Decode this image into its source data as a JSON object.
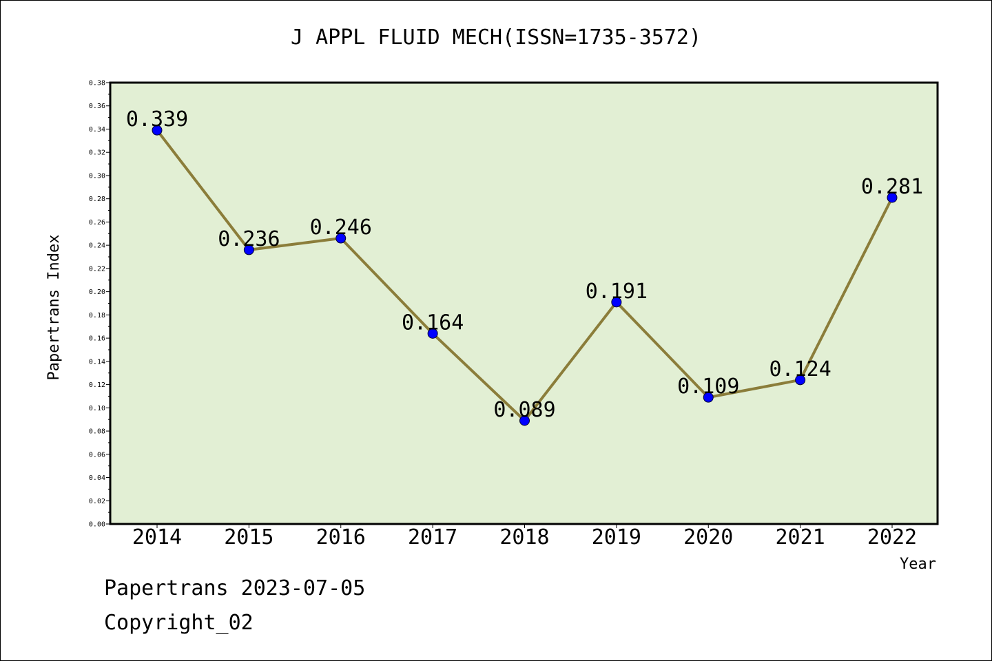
{
  "chart_data": {
    "type": "line",
    "title": "J APPL FLUID MECH(ISSN=1735-3572)",
    "xlabel": "Year",
    "ylabel": "Papertrans Index",
    "categories": [
      "2014",
      "2015",
      "2016",
      "2017",
      "2018",
      "2019",
      "2020",
      "2021",
      "2022"
    ],
    "series": [
      {
        "values": [
          0.339,
          0.236,
          0.246,
          0.164,
          0.089,
          0.191,
          0.109,
          0.124,
          0.281
        ],
        "labels": [
          "0.339",
          "0.236",
          "0.246",
          "0.164",
          "0.089",
          "0.191",
          "0.109",
          "0.124",
          "0.281"
        ]
      }
    ],
    "ylim": [
      0,
      0.38
    ],
    "yticks": [
      "0.00",
      "0.02",
      "0.04",
      "0.06",
      "0.08",
      "0.10",
      "0.12",
      "0.14",
      "0.16",
      "0.18",
      "0.20",
      "0.22",
      "0.24",
      "0.26",
      "0.28",
      "0.30",
      "0.32",
      "0.34",
      "0.36",
      "0.38"
    ],
    "grid": false,
    "legend": "none",
    "colors": {
      "plot_background": "#e2efd4",
      "line": "#8b7d3a",
      "marker": "#0000ff",
      "axes": "#000000"
    }
  },
  "footer": {
    "stamp": "Papertrans 2023-07-05",
    "copyright": "Copyright_02"
  }
}
